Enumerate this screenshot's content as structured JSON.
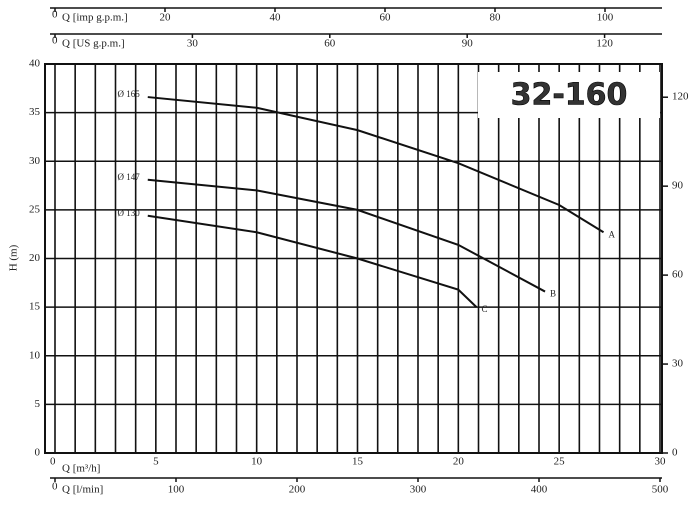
{
  "chart_data": {
    "type": "line",
    "badge": "32-160",
    "ylabel": "H (m)",
    "xlabel": "Q [m³/h]",
    "xlim": [
      0,
      30
    ],
    "xticks": [
      0,
      5,
      10,
      15,
      20,
      25,
      30
    ],
    "xgrid": [
      0,
      1,
      2,
      3,
      4,
      5,
      6,
      7,
      8,
      9,
      10,
      11,
      12,
      13,
      14,
      15,
      16,
      17,
      18,
      19,
      20,
      21,
      22,
      23,
      24,
      25,
      26,
      27,
      28,
      29,
      30
    ],
    "ylim": [
      0,
      40
    ],
    "yticks": [
      0,
      5,
      10,
      15,
      20,
      25,
      30,
      35,
      40
    ],
    "y2lim": [
      0,
      131.2
    ],
    "y2ticks": [
      0,
      30,
      60,
      90,
      120
    ],
    "grid": true,
    "secondary_x_axes": [
      {
        "label": "Q [imp g.p.m.]",
        "position": "top",
        "lim": [
          0,
          110
        ],
        "ticks": [
          0,
          20,
          40,
          60,
          80,
          100
        ]
      },
      {
        "label": "Q [US g.p.m.]",
        "position": "top",
        "lim": [
          0,
          132.1
        ],
        "ticks": [
          0,
          30,
          60,
          90,
          120
        ]
      },
      {
        "label": "Q [l/min]",
        "position": "bottom",
        "lim": [
          0,
          500
        ],
        "ticks": [
          0,
          100,
          200,
          300,
          400,
          500
        ]
      }
    ],
    "series": [
      {
        "name": "Ø 165",
        "end_label": "A",
        "color": "#111",
        "x": [
          4.6,
          10,
          15,
          20,
          25,
          27.2
        ],
        "values": [
          36.6,
          35.5,
          33.2,
          29.8,
          25.5,
          22.7
        ]
      },
      {
        "name": "Ø 147",
        "end_label": "B",
        "color": "#111",
        "x": [
          4.6,
          10,
          15,
          20,
          24.3
        ],
        "values": [
          28.1,
          27.0,
          25.0,
          21.4,
          16.6
        ]
      },
      {
        "name": "Ø 130",
        "end_label": "C",
        "color": "#111",
        "x": [
          4.6,
          10,
          15,
          20,
          20.9
        ],
        "values": [
          24.4,
          22.7,
          20.0,
          16.8,
          15.0
        ]
      }
    ]
  }
}
